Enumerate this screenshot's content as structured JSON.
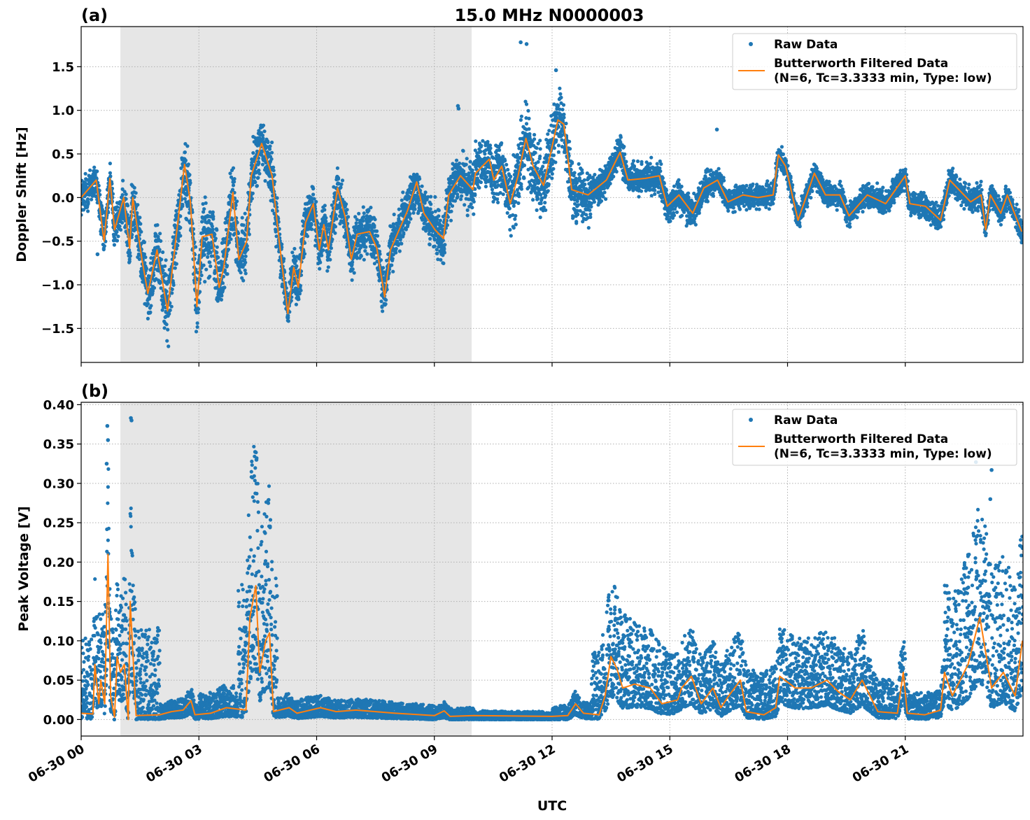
{
  "title": "15.0 MHz N0000003",
  "xlabel": "UTC",
  "x_tick_labels": [
    "06-30 00",
    "06-30 03",
    "06-30 06",
    "06-30 09",
    "06-30 12",
    "06-30 15",
    "06-30 18",
    "06-30 21"
  ],
  "colors": {
    "raw": "#1f77b4",
    "filtered": "#ff7f0e",
    "shaded": "#e6e6e6",
    "grid": "#b0b0b0"
  },
  "legend": {
    "raw_label": "Raw Data",
    "filtered_label_1": "Butterworth Filtered Data",
    "filtered_label_2": "(N=6, Tc=3.3333 min, Type: low)",
    "position": "top-right"
  },
  "chart_data": [
    {
      "type": "scatter+line",
      "panel_label": "(a)",
      "ylabel": "Doppler Shift [Hz]",
      "xlim": [
        "06-30 00:00",
        "07-01 00:00"
      ],
      "ylim": [
        -1.89,
        1.96
      ],
      "y_ticks": [
        1.5,
        1.0,
        0.5,
        0.0,
        -0.5,
        -1.0,
        -1.5
      ],
      "y_tick_labels": [
        "1.5",
        "1.0",
        "0.5",
        "0.0",
        "−0.5",
        "−1.0",
        "−1.5"
      ],
      "grid": true,
      "shaded_interval": [
        "06-30 01:00",
        "06-30 09:57"
      ],
      "filtered": {
        "x": [
          "00:00",
          "00:23",
          "00:35",
          "00:44",
          "00:51",
          "01:05",
          "01:14",
          "01:19",
          "01:33",
          "01:42",
          "01:56",
          "02:12",
          "02:19",
          "02:38",
          "02:47",
          "02:57",
          "03:05",
          "03:20",
          "03:31",
          "03:38",
          "03:52",
          "04:01",
          "04:13",
          "04:20",
          "04:36",
          "04:52",
          "05:02",
          "05:16",
          "05:25",
          "05:32",
          "05:43",
          "05:55",
          "06:04",
          "06:11",
          "06:18",
          "06:32",
          "06:44",
          "06:53",
          "07:02",
          "07:21",
          "07:32",
          "07:44",
          "07:53",
          "08:05",
          "08:19",
          "08:33",
          "08:44",
          "09:01",
          "09:14",
          "09:22",
          "09:40",
          "09:59",
          "10:03",
          "10:24",
          "10:31",
          "10:43",
          "10:56",
          "11:08",
          "11:20",
          "11:31",
          "11:47",
          "12:09",
          "12:18",
          "12:30",
          "12:55",
          "13:23",
          "13:44",
          "13:56",
          "14:23",
          "14:44",
          "14:56",
          "15:14",
          "15:35",
          "15:52",
          "16:13",
          "16:29",
          "16:52",
          "17:15",
          "17:38",
          "17:46",
          "17:57",
          "18:16",
          "18:41",
          "18:58",
          "19:20",
          "19:34",
          "20:02",
          "20:30",
          "21:00",
          "21:07",
          "21:31",
          "21:54",
          "22:08",
          "22:40",
          "22:56",
          "23:03",
          "23:10",
          "23:26",
          "23:36",
          "23:58"
        ],
        "y": [
          0.0,
          0.2,
          -0.5,
          0.22,
          -0.37,
          0.0,
          -0.58,
          0.0,
          -0.71,
          -1.1,
          -0.6,
          -1.3,
          -0.85,
          0.38,
          -0.05,
          -1.25,
          -0.45,
          -0.42,
          -1.03,
          -0.8,
          0.06,
          -0.71,
          -0.5,
          0.25,
          0.62,
          0.25,
          -0.45,
          -1.33,
          -0.8,
          -1.03,
          -0.29,
          -0.07,
          -0.6,
          -0.31,
          -0.6,
          0.11,
          -0.23,
          -0.71,
          -0.42,
          -0.39,
          -0.58,
          -1.14,
          -0.6,
          -0.39,
          -0.15,
          0.18,
          -0.18,
          -0.37,
          -0.47,
          0.03,
          0.25,
          0.09,
          0.28,
          0.44,
          0.2,
          0.36,
          -0.07,
          0.25,
          0.68,
          0.36,
          0.14,
          0.89,
          0.84,
          0.09,
          0.03,
          0.2,
          0.52,
          0.2,
          0.22,
          0.25,
          -0.1,
          0.03,
          -0.18,
          0.11,
          0.2,
          -0.05,
          0.03,
          0.0,
          0.03,
          0.49,
          0.36,
          -0.26,
          0.28,
          0.03,
          0.03,
          -0.21,
          0.03,
          -0.07,
          0.25,
          -0.07,
          -0.1,
          -0.26,
          0.2,
          -0.05,
          0.03,
          -0.37,
          0.03,
          -0.18,
          0.03,
          -0.39
        ]
      },
      "raw_spread_per_hour": [
        0.25,
        0.35,
        0.45,
        0.45,
        0.35,
        0.3,
        0.3,
        0.3,
        0.3,
        0.3,
        0.35,
        0.45,
        0.35,
        0.2,
        0.2,
        0.2,
        0.15,
        0.15,
        0.15,
        0.15,
        0.15,
        0.15,
        0.15,
        0.15
      ],
      "raw_outliers": {
        "x": [
          "11:12",
          "11:21",
          "09:36",
          "09:37",
          "16:12",
          "12:06",
          "00:25"
        ],
        "y": [
          1.78,
          1.76,
          1.05,
          1.02,
          0.78,
          1.46,
          -0.65
        ]
      }
    },
    {
      "type": "scatter+line",
      "panel_label": "(b)",
      "ylabel": "Peak Voltage [V]",
      "xlim": [
        "06-30 00:00",
        "07-01 00:00"
      ],
      "ylim": [
        -0.021,
        0.403
      ],
      "y_ticks": [
        0.0,
        0.05,
        0.1,
        0.15,
        0.2,
        0.25,
        0.3,
        0.35,
        0.4
      ],
      "y_tick_labels": [
        "0.00",
        "0.05",
        "0.10",
        "0.15",
        "0.20",
        "0.25",
        "0.30",
        "0.35",
        "0.40"
      ],
      "grid": true,
      "shaded_interval": [
        "06-30 01:00",
        "06-30 09:57"
      ],
      "filtered": {
        "x": [
          "00:00",
          "00:18",
          "00:21",
          "00:27",
          "00:30",
          "00:36",
          "00:41",
          "00:45",
          "00:51",
          "00:55",
          "01:00",
          "01:06",
          "01:12",
          "01:15",
          "01:24",
          "02:00",
          "02:18",
          "02:36",
          "02:48",
          "02:54",
          "03:18",
          "03:42",
          "04:12",
          "04:18",
          "04:27",
          "04:33",
          "04:42",
          "04:48",
          "04:54",
          "05:18",
          "05:30",
          "06:06",
          "06:30",
          "07:00",
          "07:30",
          "08:00",
          "09:00",
          "09:15",
          "09:24",
          "10:00",
          "12:00",
          "12:24",
          "12:36",
          "12:48",
          "13:12",
          "13:21",
          "13:30",
          "13:39",
          "13:48",
          "14:06",
          "14:30",
          "14:48",
          "15:12",
          "15:18",
          "15:33",
          "15:48",
          "16:06",
          "16:18",
          "16:30",
          "16:48",
          "16:57",
          "17:24",
          "17:42",
          "17:48",
          "18:12",
          "18:36",
          "19:00",
          "19:18",
          "19:36",
          "19:54",
          "20:18",
          "20:48",
          "20:57",
          "21:03",
          "21:30",
          "21:54",
          "22:00",
          "22:12",
          "22:36",
          "22:54",
          "23:12",
          "23:30",
          "23:48",
          "23:59"
        ],
        "y": [
          0.008,
          0.007,
          0.07,
          0.02,
          0.05,
          0.02,
          0.21,
          0.03,
          0.003,
          0.08,
          0.06,
          0.07,
          0.0,
          0.15,
          0.005,
          0.006,
          0.01,
          0.012,
          0.024,
          0.006,
          0.008,
          0.015,
          0.012,
          0.13,
          0.17,
          0.06,
          0.1,
          0.11,
          0.01,
          0.015,
          0.008,
          0.015,
          0.01,
          0.012,
          0.01,
          0.008,
          0.005,
          0.011,
          0.004,
          0.005,
          0.004,
          0.005,
          0.02,
          0.008,
          0.006,
          0.03,
          0.08,
          0.065,
          0.04,
          0.045,
          0.04,
          0.02,
          0.025,
          0.04,
          0.055,
          0.02,
          0.04,
          0.015,
          0.03,
          0.05,
          0.01,
          0.006,
          0.015,
          0.055,
          0.04,
          0.04,
          0.05,
          0.035,
          0.025,
          0.05,
          0.01,
          0.008,
          0.06,
          0.008,
          0.006,
          0.012,
          0.06,
          0.03,
          0.07,
          0.13,
          0.04,
          0.06,
          0.03,
          0.1
        ]
      },
      "raw_spread_per_hour": [
        0.07,
        0.08,
        0.01,
        0.02,
        0.12,
        0.012,
        0.01,
        0.01,
        0.01,
        0.008,
        0.005,
        0.005,
        0.01,
        0.06,
        0.05,
        0.04,
        0.04,
        0.04,
        0.04,
        0.04,
        0.03,
        0.02,
        0.09,
        0.1
      ],
      "raw_outliers": {
        "x": [
          "00:40",
          "00:41",
          "01:16",
          "01:17",
          "04:26",
          "04:28",
          "22:48",
          "23:12",
          "23:10",
          "00:39"
        ],
        "y": [
          0.373,
          0.355,
          0.383,
          0.38,
          0.34,
          0.33,
          0.327,
          0.317,
          0.28,
          0.325
        ]
      }
    }
  ]
}
